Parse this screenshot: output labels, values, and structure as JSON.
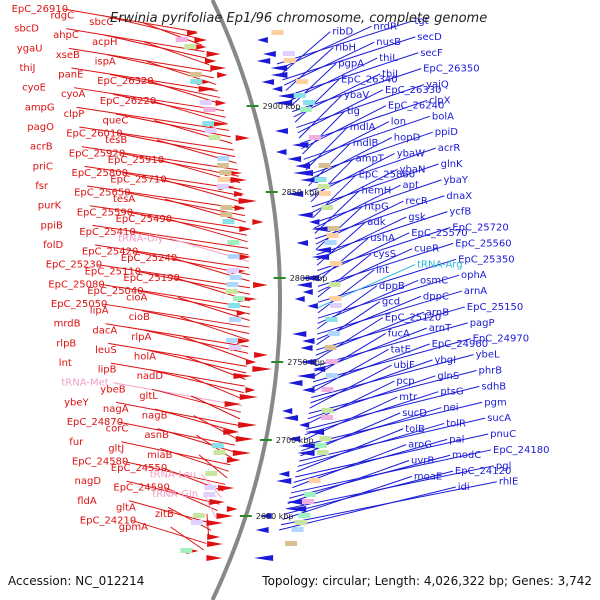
{
  "title": "Erwinia pyrifoliae Ep1/96 chromosome, complete genome",
  "footer": {
    "accession_label": "Accession:",
    "accession": "NC_012214",
    "topology_label": "Topology:",
    "topology": "circular",
    "length_label": "Length:",
    "length": "4,026,322 bp",
    "genes_label": "Genes:",
    "genes": "3,742"
  },
  "colors": {
    "forward": "#dd1111",
    "reverse": "#1a1ad8",
    "rna": "#f2a0c8",
    "trna_arg": "#2bb8d8",
    "backbone": "#888888",
    "tick": "#2a8a2a"
  },
  "ticks": [
    "2900 kbp",
    "2850 kbp",
    "2800 kbp",
    "2750 kbp",
    "2700 kbp",
    "2650 kbp"
  ],
  "left_labels": [
    "EpC_26910",
    "rdgC",
    "sbcC",
    "sbcD",
    "ahpC",
    "acpH",
    "ygaU",
    "xseB",
    "ispA",
    "thiJ",
    "panE",
    "EpC_26320",
    "cyoE",
    "cyoA",
    "EpC_26220",
    "ampG",
    "clpP",
    "queC",
    "pagO",
    "EpC_26010",
    "tesB",
    "acrB",
    "EpC_25920",
    "EpC_25910",
    "priC",
    "EpC_25800",
    "EpC_25710",
    "fsr",
    "EpC_25650",
    "tesA",
    "purK",
    "EpC_25590",
    "EpC_25490",
    "ppiB",
    "EpC_25410",
    "tRNA-Gly",
    "folD",
    "EpC_25420",
    "EpC_25240",
    "EpC_25230",
    "EpC_25110",
    "EpC_25190",
    "EpC_25080",
    "EpC_25040",
    "cioA",
    "EpC_25050",
    "lipA",
    "cioB",
    "mrdB",
    "dacA",
    "rlpA",
    "rlpB",
    "leuS",
    "holA",
    "lnt",
    "lipB",
    "nadD",
    "tRNA-Met",
    "ybeB",
    "gltL",
    "ybeY",
    "nagA",
    "nagB",
    "EpC_24870",
    "corC",
    "asnB",
    "fur",
    "gltJ",
    "miaB",
    "EpC_24580",
    "EpC_24550",
    "tRNA-Leu",
    "nagD",
    "EpC_24590",
    "tRNA-Gln",
    "fldA",
    "gltA",
    "zitB",
    "EpC_24210",
    "gpmA"
  ],
  "right_labels": [
    "tgt",
    "nrdR",
    "ribD",
    "secD",
    "nusB",
    "ribH",
    "secF",
    "thiL",
    "pgpA",
    "EpC_26350",
    "thiI",
    "EpC_26340",
    "yajQ",
    "EpC_26330",
    "ybaV",
    "clpX",
    "EpC_26240",
    "tig",
    "bolA",
    "lon",
    "mdlA",
    "ppiD",
    "hopD",
    "mdlB",
    "acrR",
    "ybaW",
    "ampT",
    "glnK",
    "ybaN",
    "EpC_25860",
    "ybaY",
    "apt",
    "hemH",
    "dnaX",
    "recR",
    "htpG",
    "ycfB",
    "gsk",
    "adk",
    "EpC_25720",
    "EpC_25570",
    "ushA",
    "EpC_25560",
    "cueR",
    "cysS",
    "EpC_25350",
    "tRNA-Arg",
    "int",
    "ophA",
    "osmC",
    "dppB",
    "arnA",
    "dppC",
    "gcd",
    "EpC_25150",
    "arnB",
    "EpC_25120",
    "pagP",
    "arnT",
    "fucA",
    "EpC_24970",
    "EpC_24960",
    "tatE",
    "ybeL",
    "ybgI",
    "ubiF",
    "phrB",
    "glnS",
    "pcp",
    "sdhB",
    "ptsG",
    "mtr",
    "pgm",
    "nei",
    "sucD",
    "sucA",
    "tolR",
    "tolB",
    "pnuC",
    "pal",
    "aroG",
    "EpC_24180",
    "modC",
    "uvrB",
    "pgl",
    "EpC_24120",
    "moaE",
    "rhlE",
    "idi"
  ]
}
